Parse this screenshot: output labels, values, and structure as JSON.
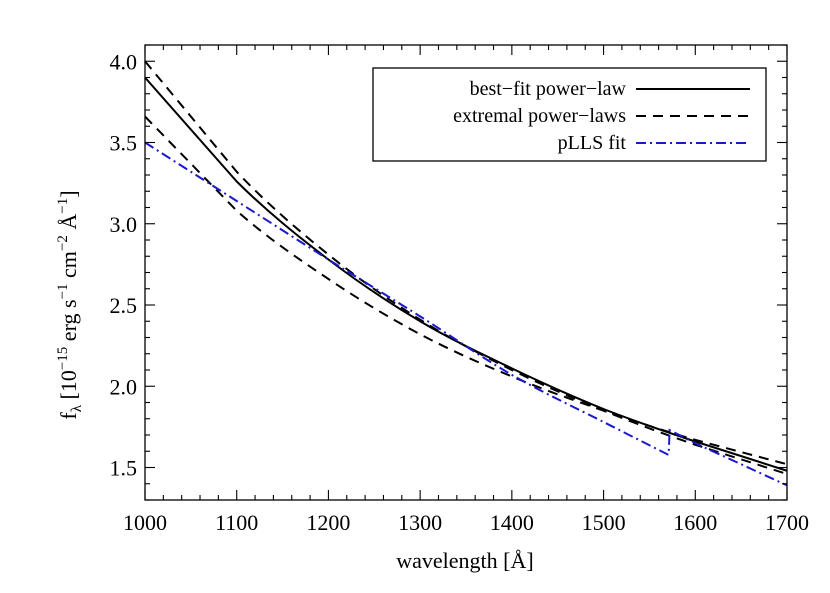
{
  "chart_data": {
    "type": "line",
    "title": "",
    "xlabel": "wavelength [Å]",
    "ylabel": {
      "base": "f",
      "sub": "λ",
      "text1": " [10",
      "sup1": "−15",
      "text2": " erg s",
      "sup2": "−1",
      "text3": " cm",
      "sup3": "−2",
      "text4": " Å",
      "sup4": "−1",
      "text5": "]"
    },
    "xlim": [
      1000,
      1700
    ],
    "ylim": [
      1.3,
      4.1
    ],
    "xticks": [
      1000,
      1100,
      1200,
      1300,
      1400,
      1500,
      1600,
      1700
    ],
    "xtick_labels": [
      "1000",
      "1100",
      "1200",
      "1300",
      "1400",
      "1500",
      "1600",
      "1700"
    ],
    "yticks": [
      1.5,
      2.0,
      2.5,
      3.0,
      3.5,
      4.0
    ],
    "ytick_labels": [
      "1.5",
      "2.0",
      "2.5",
      "3.0",
      "3.5",
      "4.0"
    ],
    "grid": false,
    "legend_position": "top-right",
    "series": [
      {
        "name": "best−fit power−law",
        "style": "solid",
        "color": "#000000",
        "x": [
          1000,
          1100,
          1200,
          1300,
          1400,
          1500,
          1600,
          1700
        ],
        "y": [
          3.9,
          3.26,
          2.78,
          2.4,
          2.11,
          1.86,
          1.66,
          1.48
        ]
      },
      {
        "name": "extremal power−laws",
        "style": "dashed",
        "color": "#000000",
        "x": [
          1000,
          1100,
          1200,
          1300,
          1400,
          1500,
          1600,
          1700
        ],
        "y": [
          4.0,
          3.32,
          2.81,
          2.41,
          2.1,
          1.85,
          1.64,
          1.46
        ]
      },
      {
        "name": "",
        "style": "dashed",
        "color": "#000000",
        "x": [
          1000,
          1100,
          1200,
          1300,
          1400,
          1500,
          1600,
          1700
        ],
        "y": [
          3.66,
          3.08,
          2.66,
          2.32,
          2.06,
          1.85,
          1.67,
          1.52
        ]
      },
      {
        "name": "pLLS fit",
        "style": "dashdot",
        "color": "#1a1acc",
        "x": [
          1000,
          1100,
          1200,
          1300,
          1400,
          1500,
          1570,
          1571,
          1572,
          1600,
          1650,
          1700
        ],
        "y": [
          3.5,
          3.14,
          2.78,
          2.43,
          2.07,
          1.78,
          1.58,
          1.58,
          1.73,
          1.65,
          1.52,
          1.39
        ]
      }
    ]
  }
}
